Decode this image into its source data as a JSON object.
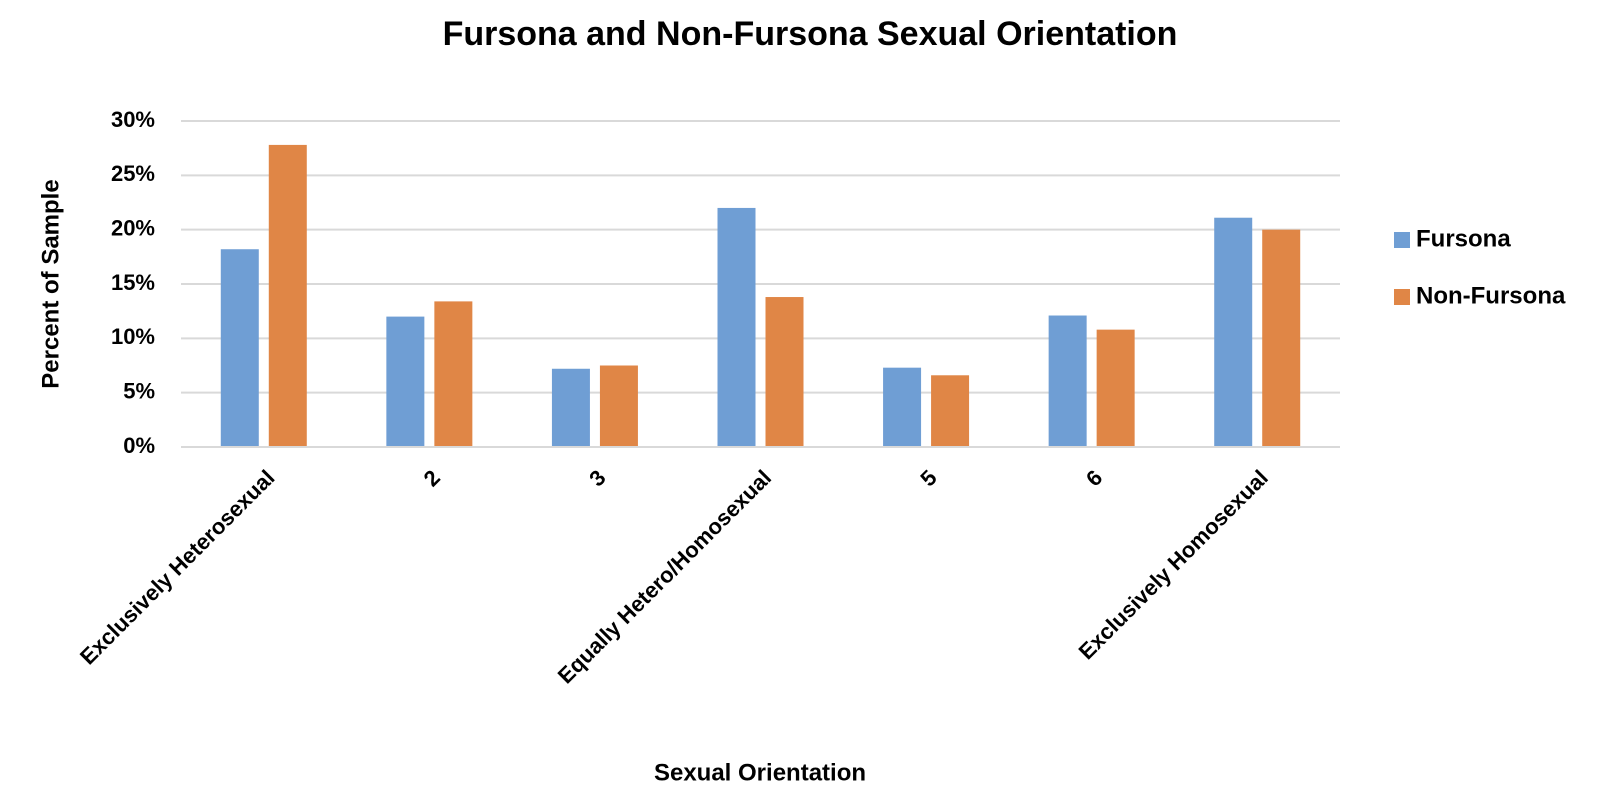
{
  "chart_data": {
    "type": "bar",
    "title": "Fursona and Non-Fursona Sexual Orientation",
    "x_label": "Sexual Orientation",
    "y_label": "Percent of Sample",
    "categories": [
      "Exclusively Heterosexual",
      "2",
      "3",
      "Equally Hetero/Homosexual",
      "5",
      "6",
      "Exclusively Homosexual"
    ],
    "series": [
      {
        "name": "Fursona",
        "color": "#6f9ed4",
        "values": [
          18.2,
          12.0,
          7.2,
          22.0,
          7.3,
          12.1,
          21.1
        ]
      },
      {
        "name": "Non-Fursona",
        "color": "#e08646",
        "values": [
          27.8,
          13.4,
          7.5,
          13.8,
          6.6,
          10.8,
          20.0
        ]
      }
    ],
    "ylim": [
      0,
      30
    ],
    "yticks": [
      {
        "value": 0,
        "label": "0%"
      },
      {
        "value": 5,
        "label": "5%"
      },
      {
        "value": 10,
        "label": "10%"
      },
      {
        "value": 15,
        "label": "15%"
      },
      {
        "value": 20,
        "label": "20%"
      },
      {
        "value": 25,
        "label": "25%"
      },
      {
        "value": 30,
        "label": "30%"
      }
    ],
    "grid": true,
    "legend": "right"
  }
}
